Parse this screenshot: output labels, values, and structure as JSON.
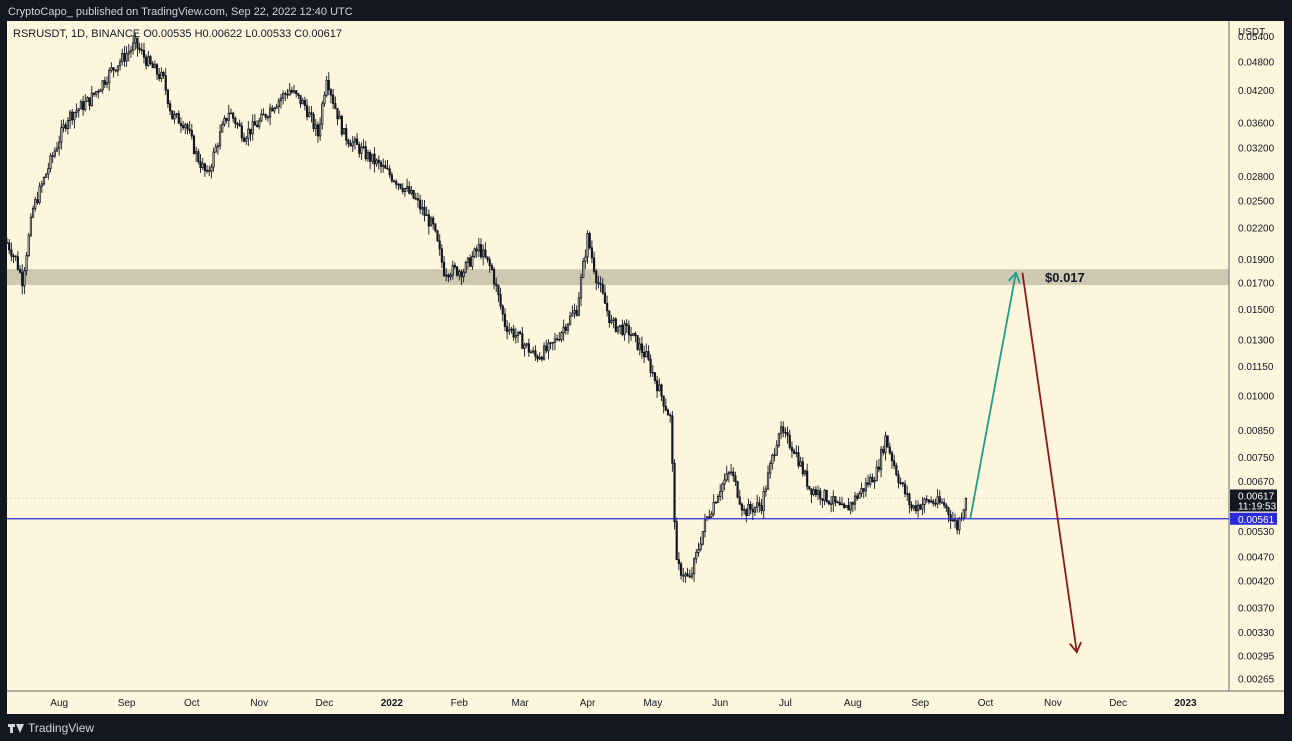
{
  "header": {
    "text": "CryptoCapo_ published on TradingView.com, Sep 22, 2022 12:40 UTC"
  },
  "footer": {
    "brand": "TradingView"
  },
  "chart_data": {
    "type": "candlestick",
    "symbol_line": "RSRUSDT, 1D, BINANCE  O0.00535  H0.00622  L0.00533  C0.00617",
    "currency": "USDT",
    "y_scale": "log",
    "ylim": [
      0.0025,
      0.058
    ],
    "y_ticks": [
      "0.05400",
      "0.04800",
      "0.04200",
      "0.03600",
      "0.03200",
      "0.02800",
      "0.02500",
      "0.02200",
      "0.01900",
      "0.01700",
      "0.01500",
      "0.01300",
      "0.01150",
      "0.01000",
      "0.00850",
      "0.00750",
      "0.00670",
      "0.00530",
      "0.00470",
      "0.00420",
      "0.00370",
      "0.00330",
      "0.00295",
      "0.00265"
    ],
    "x_ticks": [
      {
        "label": "Aug",
        "date": "2021-08-01"
      },
      {
        "label": "Sep",
        "date": "2021-09-01"
      },
      {
        "label": "Oct",
        "date": "2021-10-01"
      },
      {
        "label": "Nov",
        "date": "2021-11-01"
      },
      {
        "label": "Dec",
        "date": "2021-12-01"
      },
      {
        "label": "2022",
        "date": "2022-01-01"
      },
      {
        "label": "Feb",
        "date": "2022-02-01"
      },
      {
        "label": "Mar",
        "date": "2022-03-01"
      },
      {
        "label": "Apr",
        "date": "2022-04-01"
      },
      {
        "label": "May",
        "date": "2022-05-01"
      },
      {
        "label": "Jun",
        "date": "2022-06-01"
      },
      {
        "label": "Jul",
        "date": "2022-07-01"
      },
      {
        "label": "Aug",
        "date": "2022-08-01"
      },
      {
        "label": "Sep",
        "date": "2022-09-01"
      },
      {
        "label": "Oct",
        "date": "2022-10-01"
      },
      {
        "label": "Nov",
        "date": "2022-11-01"
      },
      {
        "label": "Dec",
        "date": "2022-12-01"
      },
      {
        "label": "2023",
        "date": "2023-01-01"
      }
    ],
    "x_range": [
      "2021-07-08",
      "2023-01-21"
    ],
    "price_path": [
      [
        "2021-07-08",
        0.0205
      ],
      [
        "2021-07-12",
        0.019
      ],
      [
        "2021-07-15",
        0.0172
      ],
      [
        "2021-07-20",
        0.024
      ],
      [
        "2021-07-28",
        0.03
      ],
      [
        "2021-08-05",
        0.037
      ],
      [
        "2021-08-15",
        0.04
      ],
      [
        "2021-08-25",
        0.046
      ],
      [
        "2021-09-05",
        0.052
      ],
      [
        "2021-09-12",
        0.047
      ],
      [
        "2021-09-18",
        0.044
      ],
      [
        "2021-09-22",
        0.037
      ],
      [
        "2021-09-28",
        0.036
      ],
      [
        "2021-10-03",
        0.031
      ],
      [
        "2021-10-08",
        0.028
      ],
      [
        "2021-10-13",
        0.033
      ],
      [
        "2021-10-18",
        0.038
      ],
      [
        "2021-10-25",
        0.034
      ],
      [
        "2021-11-01",
        0.036
      ],
      [
        "2021-11-07",
        0.039
      ],
      [
        "2021-11-15",
        0.042
      ],
      [
        "2021-11-22",
        0.039
      ],
      [
        "2021-11-28",
        0.034
      ],
      [
        "2021-12-02",
        0.045
      ],
      [
        "2021-12-05",
        0.04
      ],
      [
        "2021-12-10",
        0.034
      ],
      [
        "2021-12-20",
        0.031
      ],
      [
        "2021-12-28",
        0.029
      ],
      [
        "2022-01-05",
        0.027
      ],
      [
        "2022-01-12",
        0.025
      ],
      [
        "2022-01-20",
        0.022
      ],
      [
        "2022-01-25",
        0.018
      ],
      [
        "2022-02-03",
        0.018
      ],
      [
        "2022-02-10",
        0.02
      ],
      [
        "2022-02-16",
        0.018
      ],
      [
        "2022-02-22",
        0.014
      ],
      [
        "2022-03-01",
        0.013
      ],
      [
        "2022-03-08",
        0.012
      ],
      [
        "2022-03-15",
        0.0125
      ],
      [
        "2022-03-22",
        0.014
      ],
      [
        "2022-03-27",
        0.015
      ],
      [
        "2022-04-01",
        0.021
      ],
      [
        "2022-04-05",
        0.0175
      ],
      [
        "2022-04-12",
        0.014
      ],
      [
        "2022-04-20",
        0.0135
      ],
      [
        "2022-04-28",
        0.012
      ],
      [
        "2022-05-05",
        0.01
      ],
      [
        "2022-05-09",
        0.009
      ],
      [
        "2022-05-12",
        0.0045
      ],
      [
        "2022-05-18",
        0.0042
      ],
      [
        "2022-05-25",
        0.0055
      ],
      [
        "2022-06-01",
        0.0065
      ],
      [
        "2022-06-06",
        0.007
      ],
      [
        "2022-06-12",
        0.0058
      ],
      [
        "2022-06-20",
        0.006
      ],
      [
        "2022-06-28",
        0.0085
      ],
      [
        "2022-07-05",
        0.0078
      ],
      [
        "2022-07-12",
        0.0065
      ],
      [
        "2022-07-20",
        0.0062
      ],
      [
        "2022-07-28",
        0.0058
      ],
      [
        "2022-08-05",
        0.0064
      ],
      [
        "2022-08-12",
        0.007
      ],
      [
        "2022-08-16",
        0.0082
      ],
      [
        "2022-08-22",
        0.0068
      ],
      [
        "2022-08-28",
        0.0059
      ],
      [
        "2022-09-05",
        0.0061
      ],
      [
        "2022-09-12",
        0.006
      ],
      [
        "2022-09-18",
        0.0054
      ],
      [
        "2022-09-22",
        0.00617
      ]
    ],
    "support_line": {
      "value": 0.00561,
      "label": "0.00561",
      "color": "#2a2ad8"
    },
    "last_price": {
      "value": 0.00617,
      "label": "0.00617",
      "countdown": "11:19:53"
    },
    "resistance_zone": {
      "low": 0.0168,
      "high": 0.0181,
      "label": "$0.017",
      "color": "#c9c3ac"
    },
    "projection_up": {
      "from": [
        "2022-09-24",
        0.00561
      ],
      "to": [
        "2022-10-15",
        0.0178
      ],
      "color": "#1e9e8a"
    },
    "projection_down": {
      "from": [
        "2022-10-18",
        0.0178
      ],
      "to": [
        "2022-11-12",
        0.003
      ],
      "color": "#8b1a1a"
    }
  }
}
